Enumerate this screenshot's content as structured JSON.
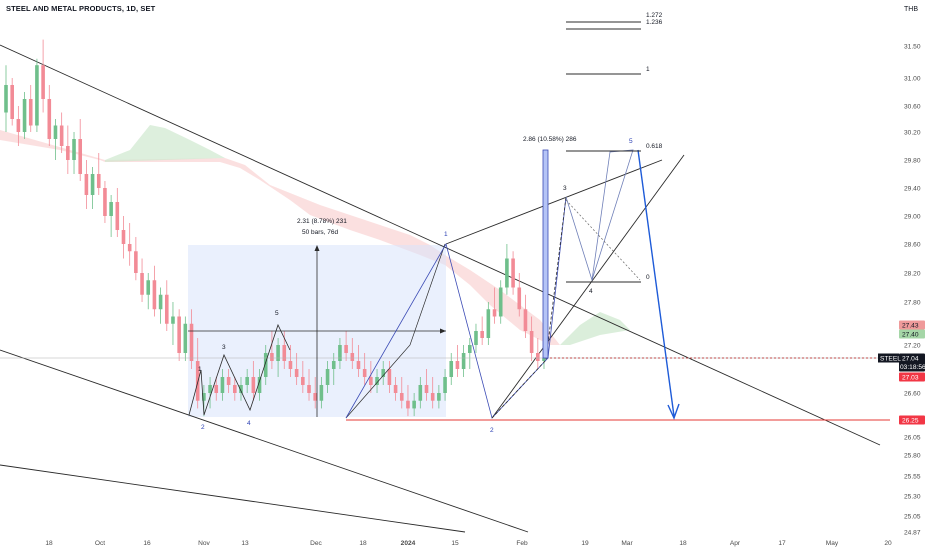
{
  "header": {
    "title": "STEEL AND METAL PRODUCTS, 1D, SET",
    "currency": "THB"
  },
  "chart_data": {
    "type": "candlestick",
    "symbol": "STEEL",
    "interval": "1D",
    "exchange": "SET",
    "ylim": [
      24.87,
      32.0
    ],
    "yticks": [
      "31.50",
      "31.00",
      "30.60",
      "30.20",
      "29.80",
      "29.40",
      "29.00",
      "28.60",
      "28.20",
      "27.80",
      "27.40",
      "27.20",
      "26.60",
      "26.25",
      "26.05",
      "25.80",
      "25.55",
      "25.30",
      "25.05",
      "24.87"
    ],
    "ytick_values": [
      31.5,
      31.0,
      30.6,
      30.2,
      29.8,
      29.4,
      29.0,
      28.6,
      28.2,
      27.8,
      27.4,
      27.2,
      26.6,
      26.25,
      26.05,
      25.8,
      25.55,
      25.3,
      25.05,
      24.87
    ],
    "xticks": [
      "18",
      "Oct",
      "16",
      "Nov",
      "13",
      "Dec",
      "18",
      "2024",
      "15",
      "Feb",
      "19",
      "Mar",
      "18",
      "Apr",
      "17",
      "May",
      "20"
    ],
    "price_tags": [
      {
        "value": "27.43",
        "color": "#ef9a9a",
        "text_dark": true
      },
      {
        "value": "27.40",
        "color": "#a5d6a7",
        "text_dark": true
      },
      {
        "value": "27.04",
        "color": "#131722",
        "text_dark": false,
        "extra": "03:18:56"
      },
      {
        "value": "27.03",
        "color": "#f23645",
        "text_dark": false
      },
      {
        "value": "26.25",
        "color": "#f23645",
        "text_dark": false
      }
    ],
    "symbol_tag": "STEEL",
    "countdown": "03:18:56",
    "fib_levels": [
      "1.272",
      "1.236",
      "1",
      "0.618",
      "0"
    ],
    "measure_top": "2.86 (10.58%) 286",
    "range_box": {
      "line1": "2.31 (8.78%) 231",
      "line2": "50 bars, 76d"
    },
    "waves_black": [
      "1",
      "2",
      "3",
      "4",
      "5"
    ],
    "waves_blue": [
      "1",
      "2",
      "3",
      "4",
      "5"
    ],
    "waves_future": [
      "1",
      "2",
      "3",
      "4",
      "5"
    ],
    "candles": [
      [
        30.5,
        31.2,
        30.2,
        30.9
      ],
      [
        30.9,
        31.0,
        30.3,
        30.4
      ],
      [
        30.4,
        30.6,
        30.0,
        30.2
      ],
      [
        30.2,
        30.8,
        30.1,
        30.7
      ],
      [
        30.7,
        30.9,
        30.2,
        30.3
      ],
      [
        30.3,
        31.3,
        30.2,
        31.2
      ],
      [
        31.2,
        31.6,
        30.5,
        30.7
      ],
      [
        30.7,
        30.9,
        30.0,
        30.1
      ],
      [
        30.1,
        30.4,
        29.8,
        30.3
      ],
      [
        30.3,
        30.5,
        29.9,
        30.0
      ],
      [
        30.0,
        30.3,
        29.6,
        29.8
      ],
      [
        29.8,
        30.2,
        29.6,
        30.1
      ],
      [
        30.1,
        30.4,
        29.5,
        29.6
      ],
      [
        29.6,
        29.8,
        29.1,
        29.3
      ],
      [
        29.3,
        29.7,
        29.1,
        29.6
      ],
      [
        29.6,
        29.9,
        29.3,
        29.4
      ],
      [
        29.4,
        29.5,
        28.9,
        29.0
      ],
      [
        29.0,
        29.3,
        28.7,
        29.2
      ],
      [
        29.2,
        29.4,
        28.7,
        28.8
      ],
      [
        28.8,
        29.0,
        28.4,
        28.6
      ],
      [
        28.6,
        28.9,
        28.3,
        28.5
      ],
      [
        28.5,
        28.7,
        28.1,
        28.2
      ],
      [
        28.2,
        28.4,
        27.8,
        27.9
      ],
      [
        27.9,
        28.2,
        27.7,
        28.1
      ],
      [
        28.1,
        28.3,
        27.6,
        27.7
      ],
      [
        27.7,
        28.0,
        27.5,
        27.9
      ],
      [
        27.9,
        28.1,
        27.4,
        27.5
      ],
      [
        27.5,
        27.8,
        27.2,
        27.6
      ],
      [
        27.6,
        27.7,
        27.0,
        27.1
      ],
      [
        27.1,
        27.6,
        27.0,
        27.5
      ],
      [
        27.5,
        27.7,
        26.9,
        27.0
      ],
      [
        27.0,
        27.3,
        26.4,
        26.5
      ],
      [
        26.5,
        26.7,
        26.3,
        26.6
      ],
      [
        26.6,
        26.8,
        26.4,
        26.7
      ],
      [
        26.7,
        26.8,
        26.5,
        26.6
      ],
      [
        26.6,
        26.9,
        26.5,
        26.8
      ],
      [
        26.8,
        26.9,
        26.6,
        26.7
      ],
      [
        26.7,
        26.8,
        26.5,
        26.6
      ],
      [
        26.6,
        26.8,
        26.5,
        26.7
      ],
      [
        26.7,
        26.9,
        26.6,
        26.8
      ],
      [
        26.8,
        27.0,
        26.5,
        26.6
      ],
      [
        26.6,
        26.9,
        26.5,
        26.8
      ],
      [
        26.8,
        27.2,
        26.7,
        27.1
      ],
      [
        27.1,
        27.4,
        26.9,
        27.0
      ],
      [
        27.0,
        27.3,
        26.8,
        27.2
      ],
      [
        27.2,
        27.4,
        26.9,
        27.0
      ],
      [
        27.0,
        27.2,
        26.8,
        26.9
      ],
      [
        26.9,
        27.1,
        26.7,
        26.8
      ],
      [
        26.8,
        27.0,
        26.6,
        26.7
      ],
      [
        26.7,
        26.9,
        26.5,
        26.6
      ],
      [
        26.6,
        26.8,
        26.4,
        26.5
      ],
      [
        26.5,
        26.8,
        26.4,
        26.7
      ],
      [
        26.7,
        27.0,
        26.6,
        26.9
      ],
      [
        26.9,
        27.1,
        26.7,
        27.0
      ],
      [
        27.0,
        27.3,
        26.9,
        27.2
      ],
      [
        27.2,
        27.4,
        27.0,
        27.1
      ],
      [
        27.1,
        27.3,
        26.9,
        27.0
      ],
      [
        27.0,
        27.2,
        26.8,
        26.9
      ],
      [
        26.9,
        27.1,
        26.7,
        26.8
      ],
      [
        26.8,
        27.0,
        26.6,
        26.7
      ],
      [
        26.7,
        26.9,
        26.6,
        26.8
      ],
      [
        26.8,
        27.0,
        26.7,
        26.9
      ],
      [
        26.9,
        27.0,
        26.6,
        26.7
      ],
      [
        26.7,
        26.8,
        26.5,
        26.6
      ],
      [
        26.6,
        26.8,
        26.4,
        26.5
      ],
      [
        26.5,
        26.7,
        26.3,
        26.4
      ],
      [
        26.4,
        26.6,
        26.3,
        26.5
      ],
      [
        26.5,
        26.8,
        26.4,
        26.7
      ],
      [
        26.7,
        26.9,
        26.5,
        26.6
      ],
      [
        26.6,
        26.8,
        26.4,
        26.5
      ],
      [
        26.5,
        26.7,
        26.4,
        26.6
      ],
      [
        26.6,
        26.9,
        26.5,
        26.8
      ],
      [
        26.8,
        27.1,
        26.7,
        27.0
      ],
      [
        27.0,
        27.2,
        26.8,
        26.9
      ],
      [
        26.9,
        27.2,
        26.8,
        27.1
      ],
      [
        27.1,
        27.3,
        26.9,
        27.2
      ],
      [
        27.2,
        27.5,
        27.1,
        27.4
      ],
      [
        27.4,
        27.6,
        27.2,
        27.3
      ],
      [
        27.3,
        27.8,
        27.2,
        27.7
      ],
      [
        27.7,
        28.0,
        27.5,
        27.6
      ],
      [
        27.6,
        28.1,
        27.5,
        28.0
      ],
      [
        28.0,
        28.6,
        27.9,
        28.4
      ],
      [
        28.4,
        28.5,
        27.9,
        28.0
      ],
      [
        28.0,
        28.2,
        27.6,
        27.7
      ],
      [
        27.7,
        27.9,
        27.3,
        27.4
      ],
      [
        27.4,
        27.6,
        27.0,
        27.1
      ],
      [
        27.1,
        27.3,
        26.9,
        27.0
      ],
      [
        27.0,
        27.2,
        26.9,
        27.04
      ]
    ]
  }
}
